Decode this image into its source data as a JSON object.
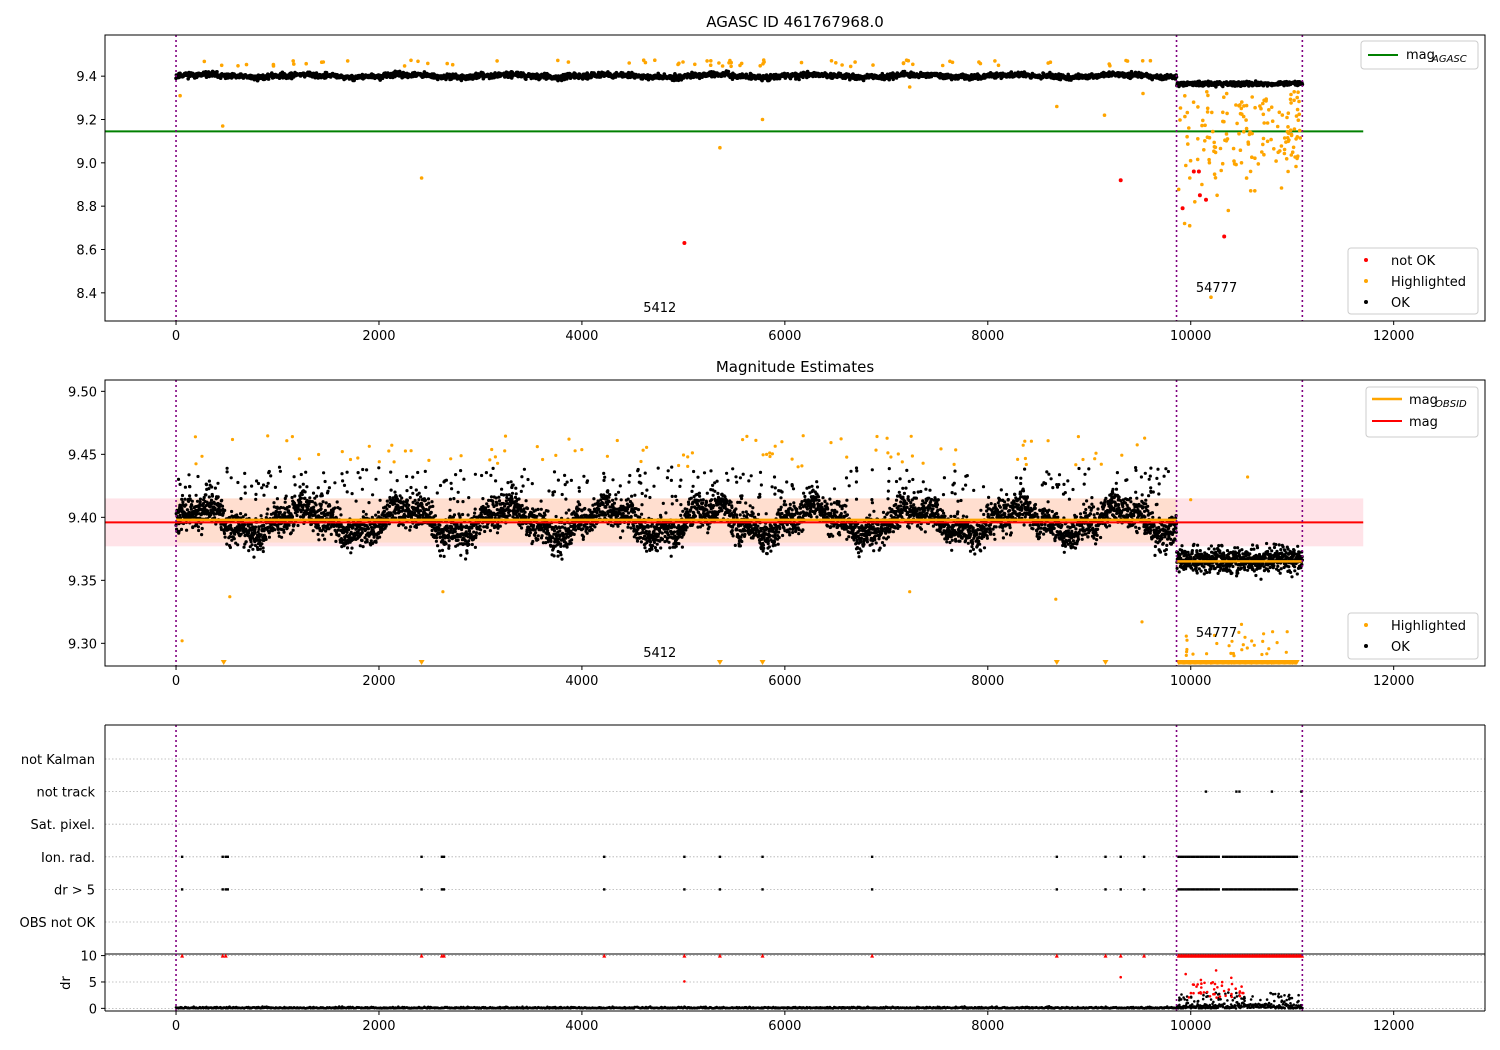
{
  "figure": {
    "title": "AGASC ID 461767968.0",
    "colors": {
      "ok": "#000000",
      "highlighted": "#ffa500",
      "not_ok": "#ff0000",
      "agasc_line": "#008000",
      "mag_line": "#ff0000",
      "obsid_line": "#ffa500",
      "band": "#ffc0cb",
      "obs_band": "#ffdab9",
      "obs_boundary": "#800080",
      "grid": "#b0b0b0"
    },
    "obs_boundaries": [
      0,
      9860,
      11100
    ],
    "obs_labels": [
      {
        "text": "5412",
        "x": 4900
      },
      {
        "text": "54777",
        "x": 10550
      }
    ]
  },
  "chart_data": [
    {
      "id": "top",
      "type": "scatter",
      "title": "AGASC ID 461767968.0",
      "xlim": [
        -700,
        12900
      ],
      "ylim": [
        8.27,
        9.59
      ],
      "xticks": [
        0,
        2000,
        4000,
        6000,
        8000,
        10000,
        12000
      ],
      "yticks": [
        8.4,
        8.6,
        8.8,
        9.0,
        9.2,
        9.4
      ],
      "ytick_labels": [
        "8.4",
        "8.6",
        "8.8",
        "9.0",
        "9.2",
        "9.4"
      ],
      "hlines": [
        {
          "name": "mag_AGASC",
          "y": 9.145,
          "x0": -700,
          "x1": 11700
        }
      ],
      "legend_upper": {
        "position": "upper-right",
        "entries": [
          {
            "label": "mag",
            "sub": "AGASC"
          }
        ]
      },
      "legend_lower": {
        "position": "lower-right",
        "entries": [
          "not OK",
          "Highlighted",
          "OK"
        ]
      },
      "not_ok_points": [
        [
          5010,
          8.63
        ],
        [
          9310,
          8.92
        ],
        [
          9920,
          8.79
        ],
        [
          10090,
          8.85
        ],
        [
          10150,
          8.83
        ],
        [
          10330,
          8.66
        ],
        [
          10080,
          8.96
        ],
        [
          10030,
          8.96
        ]
      ],
      "highlight_points": [
        [
          40,
          9.31
        ],
        [
          460,
          9.17
        ],
        [
          2420,
          8.93
        ],
        [
          5360,
          9.07
        ],
        [
          5780,
          9.2
        ],
        [
          9150,
          9.22
        ],
        [
          8680,
          9.26
        ],
        [
          10200,
          8.38
        ],
        [
          9940,
          8.72
        ],
        [
          9990,
          8.71
        ],
        [
          10040,
          8.82
        ],
        [
          10110,
          8.9
        ],
        [
          10260,
          8.85
        ],
        [
          10370,
          8.78
        ],
        [
          10500,
          9.0
        ],
        [
          10700,
          9.05
        ],
        [
          10960,
          8.96
        ],
        [
          11050,
          9.12
        ],
        [
          9530,
          9.32
        ],
        [
          450,
          9.45
        ],
        [
          7230,
          9.35
        ]
      ]
    },
    {
      "id": "middle",
      "type": "scatter",
      "title": "Magnitude Estimates",
      "xlim": [
        -700,
        12900
      ],
      "ylim": [
        9.282,
        9.509
      ],
      "xticks": [
        0,
        2000,
        4000,
        6000,
        8000,
        10000,
        12000
      ],
      "yticks": [
        9.3,
        9.35,
        9.4,
        9.45,
        9.5
      ],
      "ytick_labels": [
        "9.30",
        "9.35",
        "9.40",
        "9.45",
        "9.50"
      ],
      "mag": 9.396,
      "mag_band": [
        9.377,
        9.415
      ],
      "obsid_mags": [
        {
          "x0": 0,
          "x1": 9860,
          "y": 9.398
        },
        {
          "x0": 9860,
          "x1": 11100,
          "y": 9.365
        }
      ],
      "obsid_bands": [
        {
          "x0": 0,
          "x1": 9860,
          "y0": 9.38,
          "y1": 9.415
        },
        {
          "x0": 9860,
          "x1": 11100,
          "y0": 9.36,
          "y1": 9.37
        }
      ],
      "legend_upper": {
        "position": "upper-right",
        "entries": [
          {
            "label": "mag",
            "sub": "OBSID"
          },
          {
            "label": "mag",
            "sub": ""
          }
        ]
      },
      "legend_lower": {
        "position": "lower-right",
        "entries": [
          "Highlighted",
          "OK"
        ]
      },
      "highlight_points": [
        [
          60,
          9.302
        ],
        [
          530,
          9.337
        ],
        [
          2630,
          9.341
        ],
        [
          7230,
          9.341
        ],
        [
          8670,
          9.335
        ],
        [
          9520,
          9.317
        ],
        [
          10560,
          9.432
        ],
        [
          10000,
          9.414
        ],
        [
          10500,
          9.315
        ]
      ],
      "offscale_markers": [
        470,
        2420,
        5360,
        5780,
        8680,
        9160,
        10000,
        10200,
        10400,
        10600,
        10800,
        11000
      ]
    },
    {
      "id": "flags",
      "type": "scatter",
      "categories": [
        "not Kalman",
        "not track",
        "Sat. pixel.",
        "Ion. rad.",
        "dr > 5",
        "OBS not OK"
      ],
      "xlim": [
        -700,
        12900
      ],
      "flag_points": {
        "not track": [
          10150,
          10450,
          10480,
          10800,
          11090
        ],
        "Ion. rad.": [
          60,
          460,
          490,
          510,
          2420,
          2620,
          2640,
          4220,
          5010,
          5360,
          5780,
          6860,
          8680,
          9160,
          9310,
          9540
        ],
        "dr > 5": [
          60,
          460,
          490,
          510,
          2420,
          2620,
          2640,
          4220,
          5010,
          5360,
          5780,
          6860,
          8680,
          9160,
          9310,
          9540
        ]
      },
      "flag_dense_range": [
        9880,
        11050
      ]
    },
    {
      "id": "dr",
      "type": "scatter",
      "ylabel": "dr",
      "xlim": [
        -700,
        12900
      ],
      "ylim": [
        -0.5,
        10.3
      ],
      "xticks": [
        0,
        2000,
        4000,
        6000,
        8000,
        10000,
        12000
      ],
      "yticks": [
        0,
        5,
        10
      ],
      "ytick_labels": [
        "0",
        "5",
        "10"
      ],
      "capped_points": [
        60,
        460,
        490,
        2420,
        2620,
        2640,
        4220,
        5010,
        5360,
        5780,
        6860,
        8680,
        9160,
        9310,
        9540
      ],
      "extra_red_points": [
        [
          5010,
          5.1
        ],
        [
          9310,
          5.9
        ],
        [
          9950,
          6.5
        ],
        [
          10100,
          5.4
        ],
        [
          10250,
          7.2
        ],
        [
          10400,
          5.8
        ]
      ]
    }
  ]
}
